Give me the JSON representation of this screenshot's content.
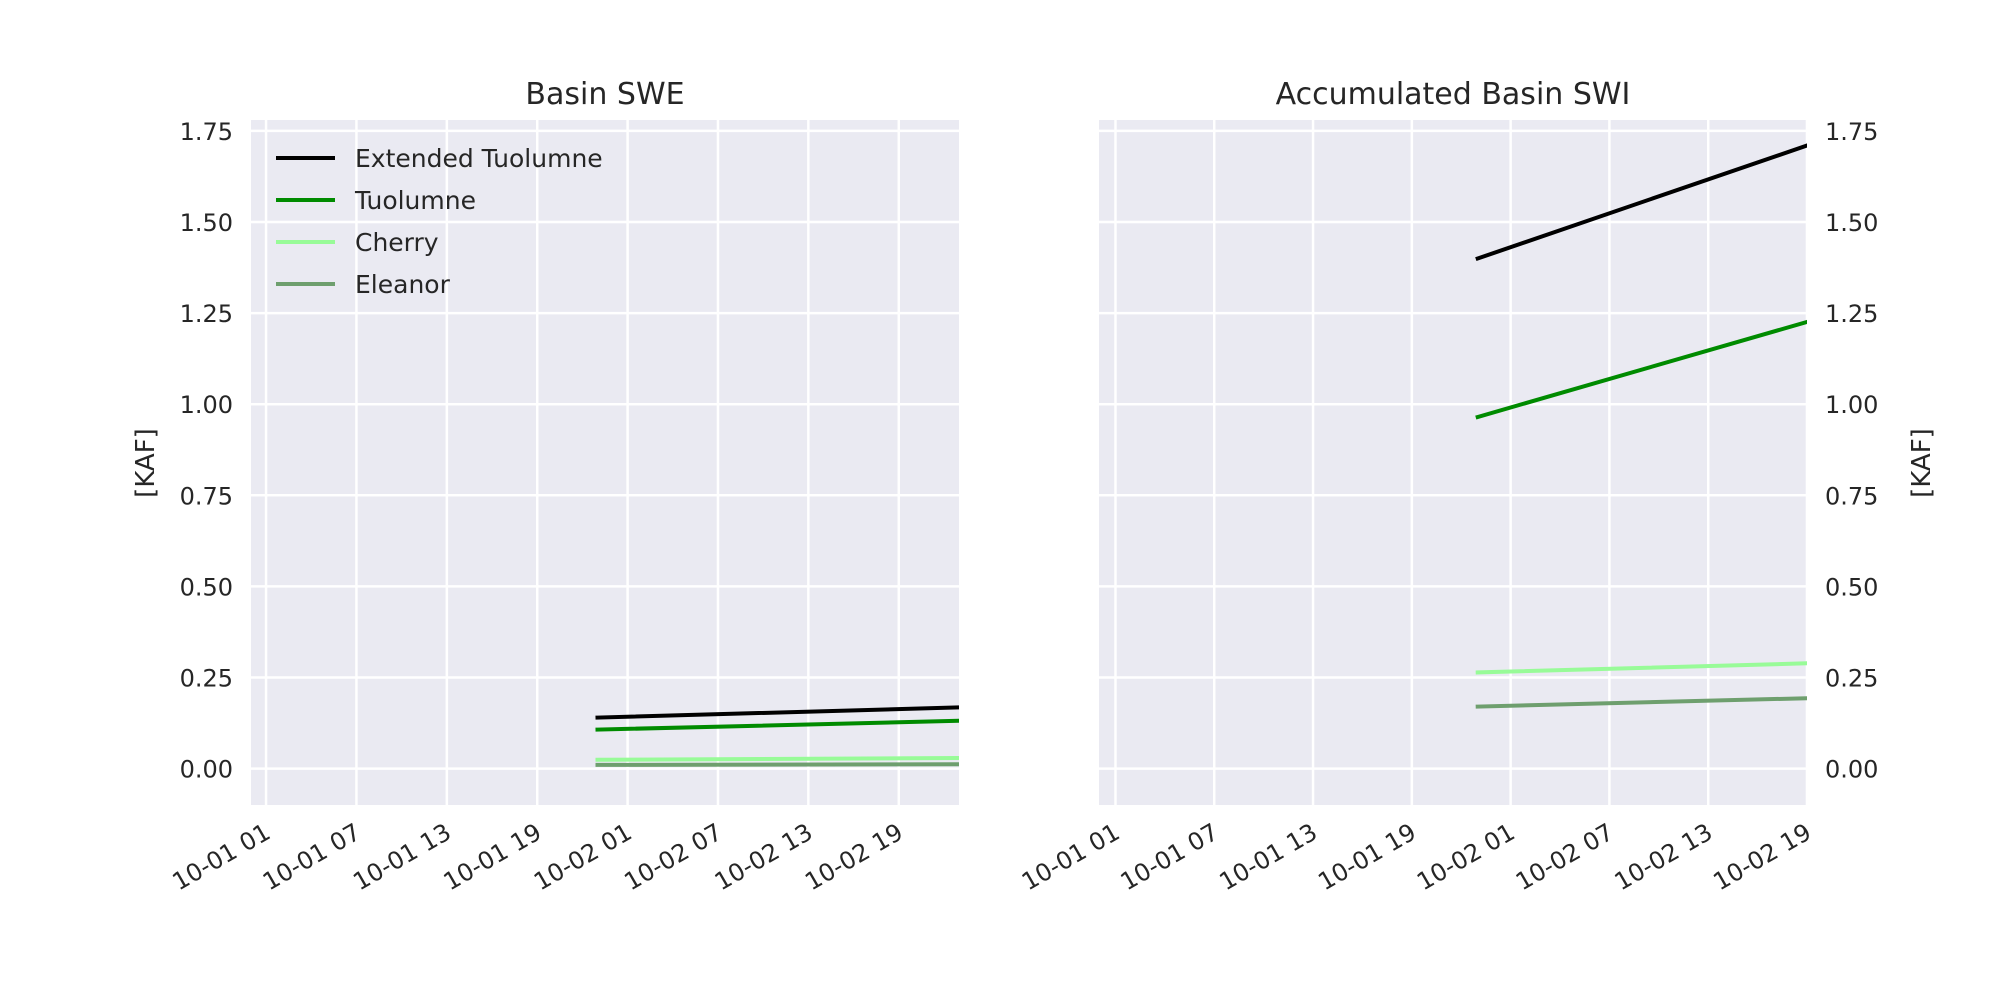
{
  "chart_data": [
    {
      "type": "line",
      "title": "Basin SWE",
      "xlabel": "",
      "ylabel": "[KAF]",
      "x_tick_labels": [
        "10-01 01",
        "10-01 07",
        "10-01 13",
        "10-01 19",
        "10-02 01",
        "10-02 07",
        "10-02 13",
        "10-02 19"
      ],
      "x_tick_times": [
        "2019-10-01T01:00",
        "2019-10-01T07:00",
        "2019-10-01T13:00",
        "2019-10-01T19:00",
        "2019-10-02T01:00",
        "2019-10-02T07:00",
        "2019-10-02T13:00",
        "2019-10-02T19:00"
      ],
      "xlim": [
        "2019-10-01T00:00",
        "2019-10-02T23:00"
      ],
      "y_ticks": [
        "0.00",
        "0.25",
        "0.50",
        "0.75",
        "1.00",
        "1.25",
        "1.50",
        "1.75"
      ],
      "ylim": [
        -0.1,
        1.78
      ],
      "y_axis_side": "left",
      "grid": true,
      "legend": {
        "placement": "top-left"
      },
      "series": [
        {
          "name": "Extended Tuolumne",
          "color": "#000000",
          "x": [
            "2019-10-01T23:00",
            "2019-10-02T23:00"
          ],
          "y": [
            0.14,
            0.168
          ]
        },
        {
          "name": "Tuolumne",
          "color": "#008b00",
          "x": [
            "2019-10-01T23:00",
            "2019-10-02T23:00"
          ],
          "y": [
            0.107,
            0.131
          ]
        },
        {
          "name": "Cherry",
          "color": "#98fb98",
          "x": [
            "2019-10-01T23:00",
            "2019-10-02T23:00"
          ],
          "y": [
            0.024,
            0.029
          ]
        },
        {
          "name": "Eleanor",
          "color": "#6e9f6e",
          "x": [
            "2019-10-01T23:00",
            "2019-10-02T23:00"
          ],
          "y": [
            0.01,
            0.012
          ]
        }
      ]
    },
    {
      "type": "line",
      "title": "Accumulated Basin SWI",
      "xlabel": "",
      "ylabel": "[KAF]",
      "x_tick_labels": [
        "10-01 01",
        "10-01 07",
        "10-01 13",
        "10-01 19",
        "10-02 01",
        "10-02 07",
        "10-02 13",
        "10-02 19"
      ],
      "x_tick_times": [
        "2019-10-01T01:00",
        "2019-10-01T07:00",
        "2019-10-01T13:00",
        "2019-10-01T19:00",
        "2019-10-02T01:00",
        "2019-10-02T07:00",
        "2019-10-02T13:00",
        "2019-10-02T19:00"
      ],
      "xlim": [
        "2019-10-01T00:00",
        "2019-10-02T19:00"
      ],
      "y_ticks": [
        "0.00",
        "0.25",
        "0.50",
        "0.75",
        "1.00",
        "1.25",
        "1.50",
        "1.75"
      ],
      "ylim": [
        -0.1,
        1.78
      ],
      "y_axis_side": "right",
      "grid": true,
      "series": [
        {
          "name": "Extended Tuolumne",
          "color": "#000000",
          "x": [
            "2019-10-01T23:00",
            "2019-10-02T19:00"
          ],
          "y": [
            1.4,
            1.71
          ]
        },
        {
          "name": "Tuolumne",
          "color": "#008b00",
          "x": [
            "2019-10-01T23:00",
            "2019-10-02T19:00"
          ],
          "y": [
            0.965,
            1.226
          ]
        },
        {
          "name": "Cherry",
          "color": "#98fb98",
          "x": [
            "2019-10-01T23:00",
            "2019-10-02T19:00"
          ],
          "y": [
            0.264,
            0.289
          ]
        },
        {
          "name": "Eleanor",
          "color": "#6e9f6e",
          "x": [
            "2019-10-01T23:00",
            "2019-10-02T19:00"
          ],
          "y": [
            0.17,
            0.193
          ]
        }
      ]
    }
  ],
  "style": {
    "plot_background": "#eaeaf2",
    "grid_color": "#ffffff",
    "text_color": "#262626"
  }
}
